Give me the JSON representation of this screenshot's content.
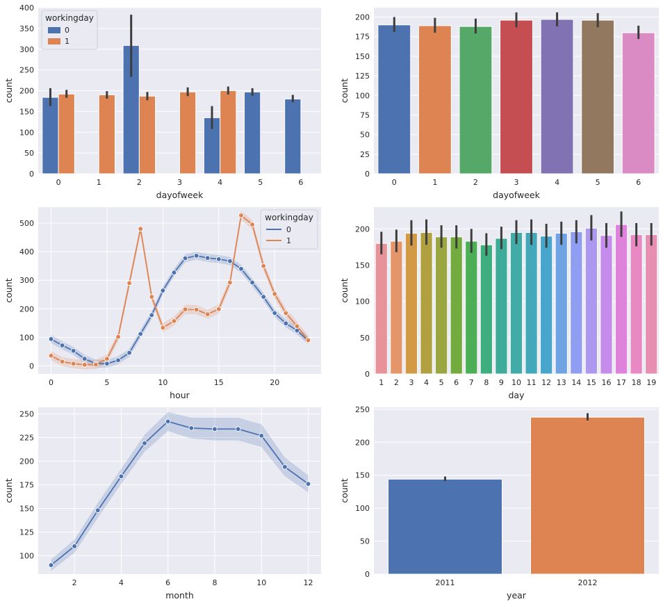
{
  "chart_data": [
    {
      "id": "dow_workingday",
      "type": "bar",
      "xlabel": "dayofweek",
      "ylabel": "count",
      "ylim": [
        0,
        400
      ],
      "yticks": [
        0,
        50,
        100,
        150,
        200,
        250,
        300,
        350,
        400
      ],
      "categories": [
        "0",
        "1",
        "2",
        "3",
        "4",
        "5",
        "6"
      ],
      "legend": {
        "title": "workingday",
        "placement": "upper-left"
      },
      "series": [
        {
          "name": "0",
          "color": "#4c72b0",
          "values": [
            184,
            null,
            309,
            null,
            135,
            197,
            180
          ],
          "ci_low": [
            163,
            null,
            233,
            null,
            108,
            188,
            172
          ],
          "ci_high": [
            206,
            null,
            383,
            null,
            163,
            206,
            190
          ]
        },
        {
          "name": "1",
          "color": "#dd8452",
          "values": [
            192,
            190,
            187,
            197,
            200,
            null,
            null
          ],
          "ci_low": [
            183,
            181,
            177,
            187,
            191,
            null,
            null
          ],
          "ci_high": [
            202,
            199,
            197,
            208,
            210,
            null,
            null
          ]
        }
      ],
      "grid": true
    },
    {
      "id": "dow_all",
      "type": "bar",
      "xlabel": "dayofweek",
      "ylabel": "count",
      "ylim": [
        0,
        212
      ],
      "yticks": [
        0,
        25,
        50,
        75,
        100,
        125,
        150,
        175,
        200
      ],
      "categories": [
        "0",
        "1",
        "2",
        "3",
        "4",
        "5",
        "6"
      ],
      "values": [
        190,
        189,
        188,
        196,
        197,
        196,
        180
      ],
      "ci_low": [
        181,
        180,
        179,
        187,
        188,
        187,
        172
      ],
      "ci_high": [
        200,
        199,
        198,
        206,
        206,
        205,
        189
      ],
      "colors": [
        "#4c72b0",
        "#dd8452",
        "#55a868",
        "#c44e52",
        "#8172b3",
        "#937860",
        "#da8bc3"
      ],
      "grid": true
    },
    {
      "id": "hour_workingday",
      "type": "line",
      "xlabel": "hour",
      "ylabel": "count",
      "xlim": [
        -1.15,
        24.15
      ],
      "ylim": [
        -28,
        556
      ],
      "xticks": [
        0,
        5,
        10,
        15,
        20
      ],
      "yticks": [
        0,
        100,
        200,
        300,
        400,
        500
      ],
      "x": [
        0,
        1,
        2,
        3,
        4,
        5,
        6,
        7,
        8,
        9,
        10,
        11,
        12,
        13,
        14,
        15,
        16,
        17,
        18,
        19,
        20,
        21,
        22,
        23
      ],
      "legend": {
        "title": "workingday",
        "placement": "upper-right"
      },
      "series": [
        {
          "name": "0",
          "color": "#4c72b0",
          "values": [
            94,
            72,
            53,
            25,
            8,
            8,
            20,
            46,
            112,
            178,
            264,
            327,
            377,
            386,
            378,
            374,
            367,
            340,
            292,
            242,
            185,
            149,
            124,
            89
          ],
          "band": 14
        },
        {
          "name": "1",
          "color": "#dd8452",
          "values": [
            36,
            15,
            8,
            4,
            5,
            25,
            102,
            290,
            480,
            242,
            134,
            157,
            198,
            197,
            181,
            199,
            292,
            527,
            495,
            350,
            252,
            185,
            139,
            90
          ],
          "band": 16
        }
      ],
      "grid": true
    },
    {
      "id": "day",
      "type": "bar",
      "xlabel": "day",
      "ylabel": "count",
      "ylim": [
        0,
        230
      ],
      "yticks": [
        0,
        50,
        100,
        150,
        200
      ],
      "categories": [
        "1",
        "2",
        "3",
        "4",
        "5",
        "6",
        "7",
        "8",
        "9",
        "10",
        "11",
        "12",
        "13",
        "14",
        "15",
        "16",
        "17",
        "18",
        "19"
      ],
      "values": [
        180,
        183,
        194,
        195,
        189,
        189,
        183,
        178,
        187,
        195,
        195,
        190,
        194,
        196,
        201,
        191,
        206,
        192,
        192
      ],
      "ci_low": [
        165,
        168,
        177,
        178,
        174,
        173,
        167,
        163,
        172,
        179,
        178,
        174,
        178,
        180,
        184,
        174,
        189,
        176,
        177
      ],
      "ci_high": [
        196,
        199,
        212,
        213,
        205,
        205,
        200,
        194,
        203,
        212,
        213,
        207,
        210,
        212,
        219,
        208,
        224,
        208,
        208
      ],
      "colors": [
        "#e8939a",
        "#e4956a",
        "#d39a45",
        "#b0a040",
        "#9aa640",
        "#74ab3f",
        "#4caf55",
        "#3eae7f",
        "#3fac9a",
        "#41aba8",
        "#43a9ba",
        "#48a6cc",
        "#6fa3e3",
        "#8f9ef0",
        "#ad98f0",
        "#c58ceb",
        "#de82dc",
        "#e889c4",
        "#e88eb0"
      ],
      "grid": true
    },
    {
      "id": "month",
      "type": "line",
      "xlabel": "month",
      "ylabel": "count",
      "xlim": [
        0.45,
        12.55
      ],
      "ylim": [
        80.5,
        257
      ],
      "xticks": [
        2,
        4,
        6,
        8,
        10,
        12
      ],
      "yticks": [
        100,
        125,
        150,
        175,
        200,
        225,
        250
      ],
      "x": [
        1,
        2,
        3,
        4,
        5,
        6,
        7,
        8,
        9,
        10,
        11,
        12
      ],
      "series": [
        {
          "name": "",
          "color": "#4c72b0",
          "values": [
            90,
            110,
            148,
            184,
            219,
            242,
            235,
            234,
            234,
            227,
            194,
            176
          ],
          "band": [
            6,
            7,
            8,
            8,
            9,
            10,
            11,
            12,
            12,
            12,
            10,
            9
          ]
        }
      ],
      "grid": true
    },
    {
      "id": "year",
      "type": "bar",
      "xlabel": "year",
      "ylabel": "count",
      "ylim": [
        0,
        253
      ],
      "yticks": [
        0,
        50,
        100,
        150,
        200,
        250
      ],
      "categories": [
        "2011",
        "2012"
      ],
      "values": [
        144,
        238
      ],
      "ci_low": [
        141,
        233
      ],
      "ci_high": [
        148,
        244
      ],
      "colors": [
        "#4c72b0",
        "#dd8452"
      ],
      "grid": true
    }
  ]
}
